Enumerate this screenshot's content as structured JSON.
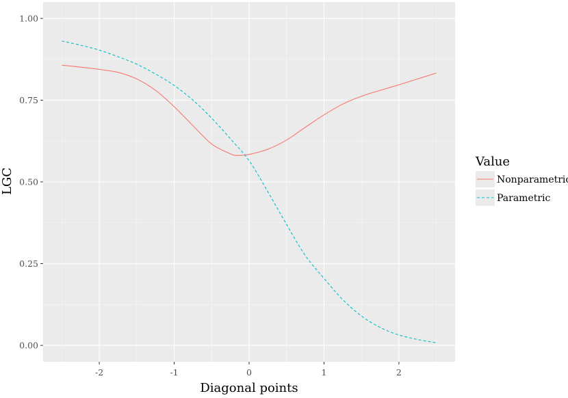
{
  "chart_data": {
    "type": "line",
    "title": "",
    "xlabel": "Diagonal points",
    "ylabel": "LGC",
    "xlim": [
      -2.75,
      2.75
    ],
    "ylim": [
      -0.05,
      1.05
    ],
    "xticks": [
      -2,
      -1,
      0,
      1,
      2
    ],
    "xtick_labels": [
      "-2",
      "-1",
      "0",
      "1",
      "2"
    ],
    "yticks": [
      0.0,
      0.25,
      0.5,
      0.75,
      1.0
    ],
    "ytick_labels": [
      "0.00",
      "0.25",
      "0.50",
      "0.75",
      "1.00"
    ],
    "grid": true,
    "legend": {
      "title": "Value",
      "placement": "right",
      "entries": [
        "Nonparametric",
        "Parametric"
      ]
    },
    "series": [
      {
        "name": "Nonparametric",
        "color": "#f8766d",
        "dash": "solid",
        "x": [
          -2.5,
          -2.25,
          -2.0,
          -1.75,
          -1.5,
          -1.25,
          -1.0,
          -0.75,
          -0.5,
          -0.25,
          -0.15,
          0.0,
          0.25,
          0.5,
          0.75,
          1.0,
          1.25,
          1.5,
          1.75,
          2.0,
          2.25,
          2.5
        ],
        "y": [
          0.857,
          0.851,
          0.844,
          0.835,
          0.815,
          0.78,
          0.73,
          0.672,
          0.616,
          0.586,
          0.581,
          0.584,
          0.6,
          0.628,
          0.667,
          0.705,
          0.738,
          0.762,
          0.78,
          0.797,
          0.815,
          0.833
        ]
      },
      {
        "name": "Parametric",
        "color": "#00bfc4",
        "dash": "dashed",
        "x": [
          -2.5,
          -2.25,
          -2.0,
          -1.75,
          -1.5,
          -1.25,
          -1.0,
          -0.75,
          -0.5,
          -0.25,
          0.0,
          0.25,
          0.5,
          0.75,
          1.0,
          1.25,
          1.5,
          1.75,
          2.0,
          2.25,
          2.5
        ],
        "y": [
          0.931,
          0.918,
          0.903,
          0.883,
          0.86,
          0.83,
          0.795,
          0.75,
          0.695,
          0.632,
          0.565,
          0.47,
          0.37,
          0.275,
          0.205,
          0.14,
          0.09,
          0.055,
          0.032,
          0.018,
          0.008
        ]
      }
    ]
  }
}
